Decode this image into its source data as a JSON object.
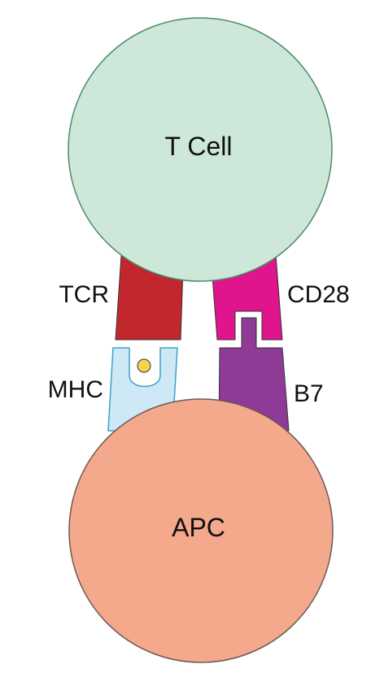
{
  "labels": {
    "t_cell": "T Cell",
    "apc": "APC",
    "tcr": "TCR",
    "mhc": "MHC",
    "cd28": "CD28",
    "b7": "B7"
  },
  "colors": {
    "t_cell_fill": "#cde8d8",
    "t_cell_stroke": "#4e8a6c",
    "apc_fill": "#f4a88c",
    "apc_stroke": "#6b5a52",
    "tcr_fill": "#c1272d",
    "mhc_fill": "#cfe8f5",
    "mhc_stroke": "#3aa3c9",
    "peptide_fill": "#f3d44a",
    "cd28_fill": "#e0148c",
    "b7_fill": "#8e3a96",
    "outline": "#333333"
  }
}
